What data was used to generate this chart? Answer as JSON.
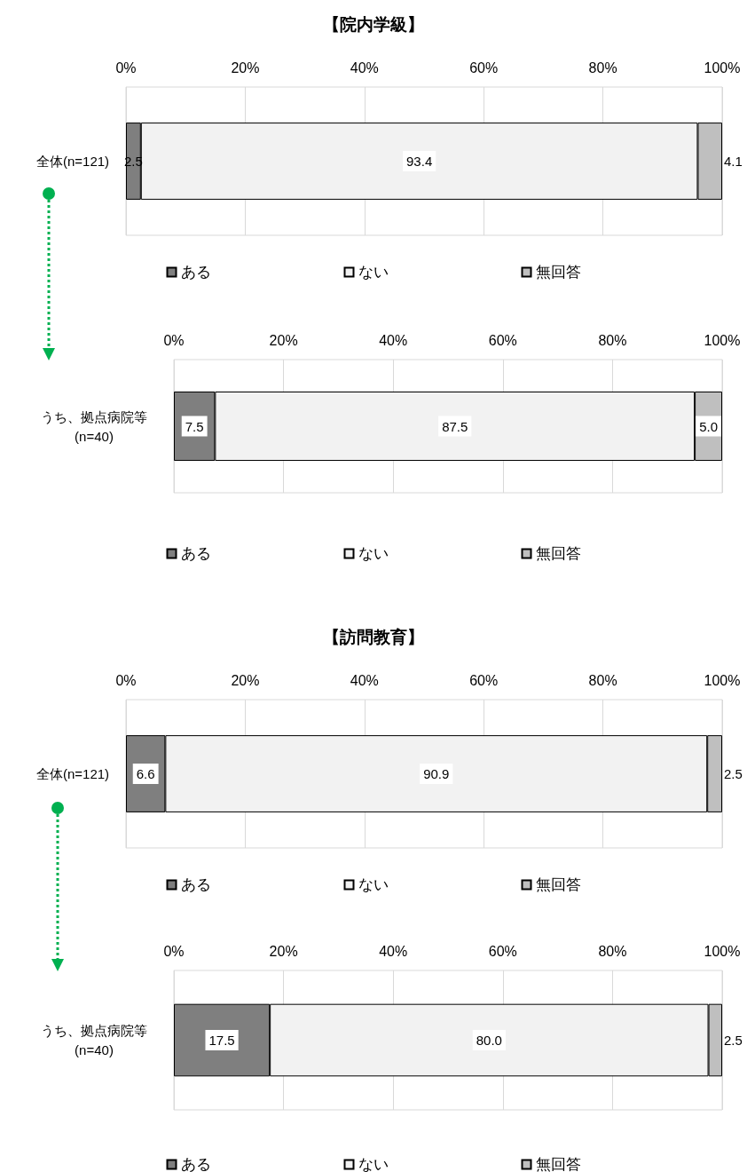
{
  "chart_data": [
    {
      "type": "bar",
      "title": "【院内学級】",
      "orientation": "horizontal",
      "stacked": true,
      "categories": [
        "全体(n=121)"
      ],
      "series": [
        {
          "name": "ある",
          "color": "#7f7f7f",
          "values": [
            2.5
          ],
          "value_labels": [
            "2.5"
          ]
        },
        {
          "name": "ない",
          "color": "#f2f2f2",
          "values": [
            93.4
          ],
          "value_labels": [
            "93.4"
          ]
        },
        {
          "name": "無回答",
          "color": "#bfbfbf",
          "values": [
            4.1
          ],
          "value_labels": [
            "4.1"
          ]
        }
      ],
      "xlim": [
        0,
        100
      ],
      "xticks": [
        {
          "value": 0,
          "label": "0%"
        },
        {
          "value": 20,
          "label": "20%"
        },
        {
          "value": 40,
          "label": "40%"
        },
        {
          "value": 60,
          "label": "60%"
        },
        {
          "value": 80,
          "label": "80%"
        },
        {
          "value": 100,
          "label": "100%"
        }
      ],
      "grid": "x",
      "legend": "bottom"
    },
    {
      "type": "bar",
      "orientation": "horizontal",
      "stacked": true,
      "categories": [
        "うち、拠点病院等\n(n=40)"
      ],
      "series": [
        {
          "name": "ある",
          "color": "#7f7f7f",
          "values": [
            7.5
          ],
          "value_labels": [
            "7.5"
          ]
        },
        {
          "name": "ない",
          "color": "#f2f2f2",
          "values": [
            87.5
          ],
          "value_labels": [
            "87.5"
          ]
        },
        {
          "name": "無回答",
          "color": "#bfbfbf",
          "values": [
            5.0
          ],
          "value_labels": [
            "5.0"
          ]
        }
      ],
      "xlim": [
        0,
        100
      ],
      "xticks": [
        {
          "value": 0,
          "label": "0%"
        },
        {
          "value": 20,
          "label": "20%"
        },
        {
          "value": 40,
          "label": "40%"
        },
        {
          "value": 60,
          "label": "60%"
        },
        {
          "value": 80,
          "label": "80%"
        },
        {
          "value": 100,
          "label": "100%"
        }
      ],
      "grid": "x",
      "legend": "bottom"
    },
    {
      "type": "bar",
      "title": "【訪問教育】",
      "orientation": "horizontal",
      "stacked": true,
      "categories": [
        "全体(n=121)"
      ],
      "series": [
        {
          "name": "ある",
          "color": "#7f7f7f",
          "values": [
            6.6
          ],
          "value_labels": [
            "6.6"
          ]
        },
        {
          "name": "ない",
          "color": "#f2f2f2",
          "values": [
            90.9
          ],
          "value_labels": [
            "90.9"
          ]
        },
        {
          "name": "無回答",
          "color": "#bfbfbf",
          "values": [
            2.5
          ],
          "value_labels": [
            "2.5"
          ]
        }
      ],
      "xlim": [
        0,
        100
      ],
      "xticks": [
        {
          "value": 0,
          "label": "0%"
        },
        {
          "value": 20,
          "label": "20%"
        },
        {
          "value": 40,
          "label": "40%"
        },
        {
          "value": 60,
          "label": "60%"
        },
        {
          "value": 80,
          "label": "80%"
        },
        {
          "value": 100,
          "label": "100%"
        }
      ],
      "grid": "x",
      "legend": "bottom"
    },
    {
      "type": "bar",
      "orientation": "horizontal",
      "stacked": true,
      "categories": [
        "うち、拠点病院等\n(n=40)"
      ],
      "series": [
        {
          "name": "ある",
          "color": "#7f7f7f",
          "values": [
            17.5
          ],
          "value_labels": [
            "17.5"
          ]
        },
        {
          "name": "ない",
          "color": "#f2f2f2",
          "values": [
            80.0
          ],
          "value_labels": [
            "80.0"
          ]
        },
        {
          "name": "無回答",
          "color": "#bfbfbf",
          "values": [
            2.5
          ],
          "value_labels": [
            "2.5"
          ]
        }
      ],
      "xlim": [
        0,
        100
      ],
      "xticks": [
        {
          "value": 0,
          "label": "0%"
        },
        {
          "value": 20,
          "label": "20%"
        },
        {
          "value": 40,
          "label": "40%"
        },
        {
          "value": 60,
          "label": "60%"
        },
        {
          "value": 80,
          "label": "80%"
        },
        {
          "value": 100,
          "label": "100%"
        }
      ],
      "grid": "x",
      "legend": "bottom"
    }
  ]
}
